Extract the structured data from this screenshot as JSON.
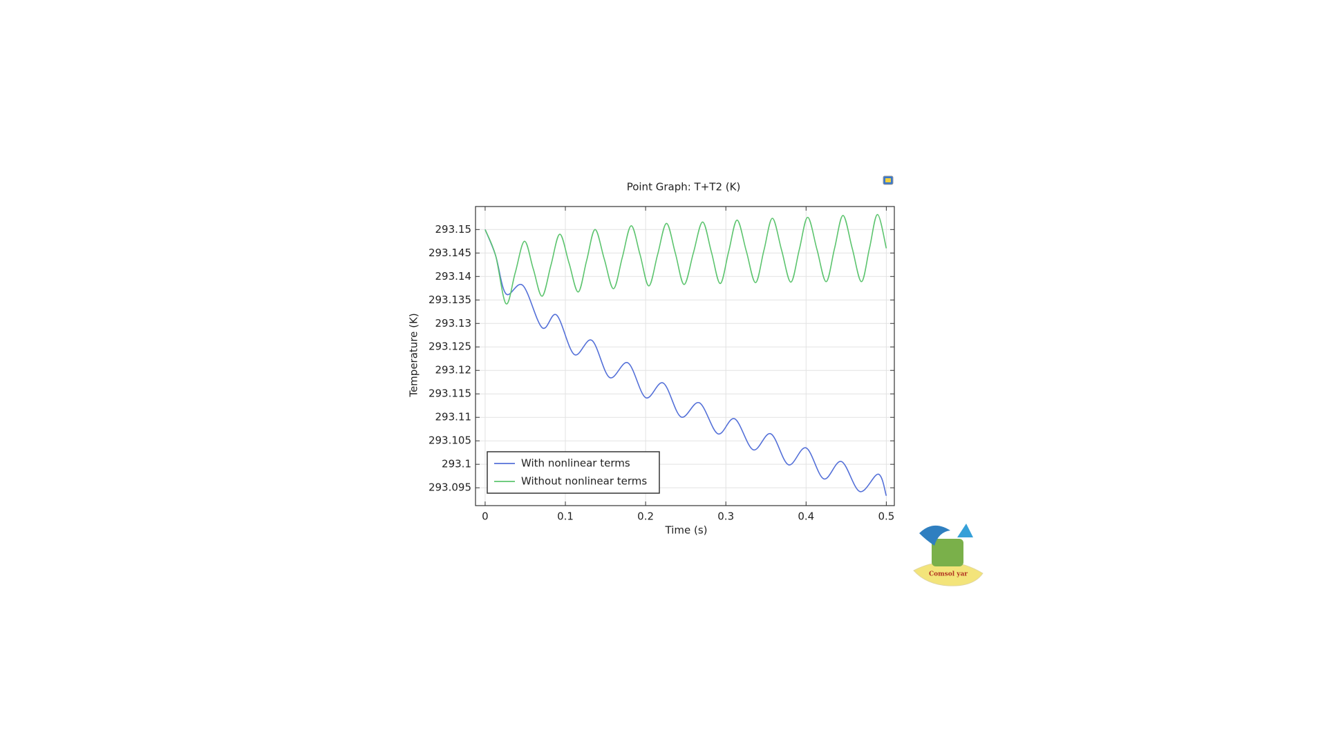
{
  "chart_data": {
    "type": "line",
    "title": "Point Graph: T+T2 (K)",
    "xlabel": "Time (s)",
    "ylabel": "Temperature (K)",
    "xlim": [
      -0.012,
      0.51
    ],
    "ylim": [
      293.0912,
      293.1549
    ],
    "xticks": [
      0,
      0.1,
      0.2,
      0.3,
      0.4,
      0.5
    ],
    "yticks": [
      293.095,
      293.1,
      293.105,
      293.11,
      293.115,
      293.12,
      293.125,
      293.13,
      293.135,
      293.14,
      293.145,
      293.15
    ],
    "grid": true,
    "legend": "lower left",
    "watermark": "Comsol yar",
    "series": [
      {
        "name": "With nonlinear terms",
        "color": "#5470d8",
        "x": [
          0,
          0.013,
          0.026,
          0.047,
          0.071,
          0.089,
          0.111,
          0.133,
          0.155,
          0.178,
          0.2,
          0.222,
          0.244,
          0.267,
          0.29,
          0.311,
          0.334,
          0.356,
          0.378,
          0.4,
          0.422,
          0.444,
          0.467,
          0.49,
          0.5
        ],
        "values": [
          293.15,
          293.1445,
          293.1363,
          293.1381,
          293.1291,
          293.1318,
          293.1234,
          293.1264,
          293.1185,
          293.1216,
          293.1142,
          293.1173,
          293.1101,
          293.1131,
          293.1065,
          293.1097,
          293.1031,
          293.1065,
          293.0999,
          293.1035,
          293.0969,
          293.1006,
          293.0942,
          293.0979,
          293.0933
        ]
      },
      {
        "name": "Without nonlinear terms",
        "color": "#5cc46e",
        "x": [
          0,
          0.013,
          0.026,
          0.0375,
          0.049,
          0.06,
          0.071,
          0.082,
          0.093,
          0.1045,
          0.116,
          0.1265,
          0.137,
          0.1485,
          0.16,
          0.171,
          0.182,
          0.193,
          0.204,
          0.215,
          0.226,
          0.237,
          0.248,
          0.2595,
          0.271,
          0.282,
          0.293,
          0.3035,
          0.314,
          0.3255,
          0.337,
          0.3475,
          0.358,
          0.3695,
          0.381,
          0.3915,
          0.402,
          0.4135,
          0.425,
          0.4355,
          0.446,
          0.4575,
          0.469,
          0.479,
          0.489,
          0.5
        ],
        "values": [
          293.15,
          293.1445,
          293.1342,
          293.1408,
          293.1475,
          293.1416,
          293.1358,
          293.1424,
          293.149,
          293.1429,
          293.1367,
          293.1434,
          293.15,
          293.1437,
          293.1374,
          293.1441,
          293.1508,
          293.1447,
          293.138,
          293.1447,
          293.1513,
          293.145,
          293.1383,
          293.145,
          293.1516,
          293.1452,
          293.1385,
          293.1453,
          293.152,
          293.1454,
          293.1387,
          293.1456,
          293.1524,
          293.1456,
          293.1388,
          293.1457,
          293.1526,
          293.1458,
          293.1389,
          293.146,
          293.153,
          293.146,
          293.1389,
          293.146,
          293.1532,
          293.146
        ]
      }
    ]
  }
}
